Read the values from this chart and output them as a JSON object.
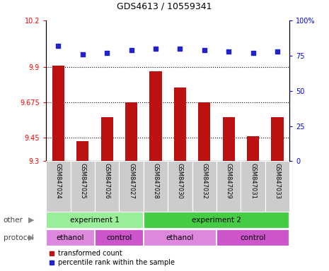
{
  "title": "GDS4613 / 10559341",
  "samples": [
    "GSM847024",
    "GSM847025",
    "GSM847026",
    "GSM847027",
    "GSM847028",
    "GSM847030",
    "GSM847032",
    "GSM847029",
    "GSM847031",
    "GSM847033"
  ],
  "bar_values": [
    9.91,
    9.43,
    9.58,
    9.675,
    9.875,
    9.77,
    9.675,
    9.58,
    9.46,
    9.58
  ],
  "percentile_values": [
    82,
    76,
    77,
    79,
    80,
    80,
    79,
    78,
    77,
    78
  ],
  "ylim_left": [
    9.3,
    10.2
  ],
  "ylim_right": [
    0,
    100
  ],
  "yticks_left": [
    9.3,
    9.45,
    9.675,
    9.9,
    10.2
  ],
  "yticks_right": [
    0,
    25,
    50,
    75,
    100
  ],
  "ytick_labels_left": [
    "9.3",
    "9.45",
    "9.675",
    "9.9",
    "10.2"
  ],
  "ytick_labels_right": [
    "0",
    "25",
    "50",
    "75",
    "100%"
  ],
  "bar_color": "#bb1111",
  "dot_color": "#2222cc",
  "bar_width": 0.5,
  "groups": [
    {
      "label": "experiment 1",
      "start": 0,
      "end": 4,
      "color": "#99ee99"
    },
    {
      "label": "experiment 2",
      "start": 4,
      "end": 10,
      "color": "#44cc44"
    }
  ],
  "protocols": [
    {
      "label": "ethanol",
      "start": 0,
      "end": 2,
      "color": "#dd88dd"
    },
    {
      "label": "control",
      "start": 2,
      "end": 4,
      "color": "#cc55cc"
    },
    {
      "label": "ethanol",
      "start": 4,
      "end": 7,
      "color": "#dd88dd"
    },
    {
      "label": "control",
      "start": 7,
      "end": 10,
      "color": "#cc55cc"
    }
  ],
  "legend_bar_label": "transformed count",
  "legend_dot_label": "percentile rank within the sample"
}
